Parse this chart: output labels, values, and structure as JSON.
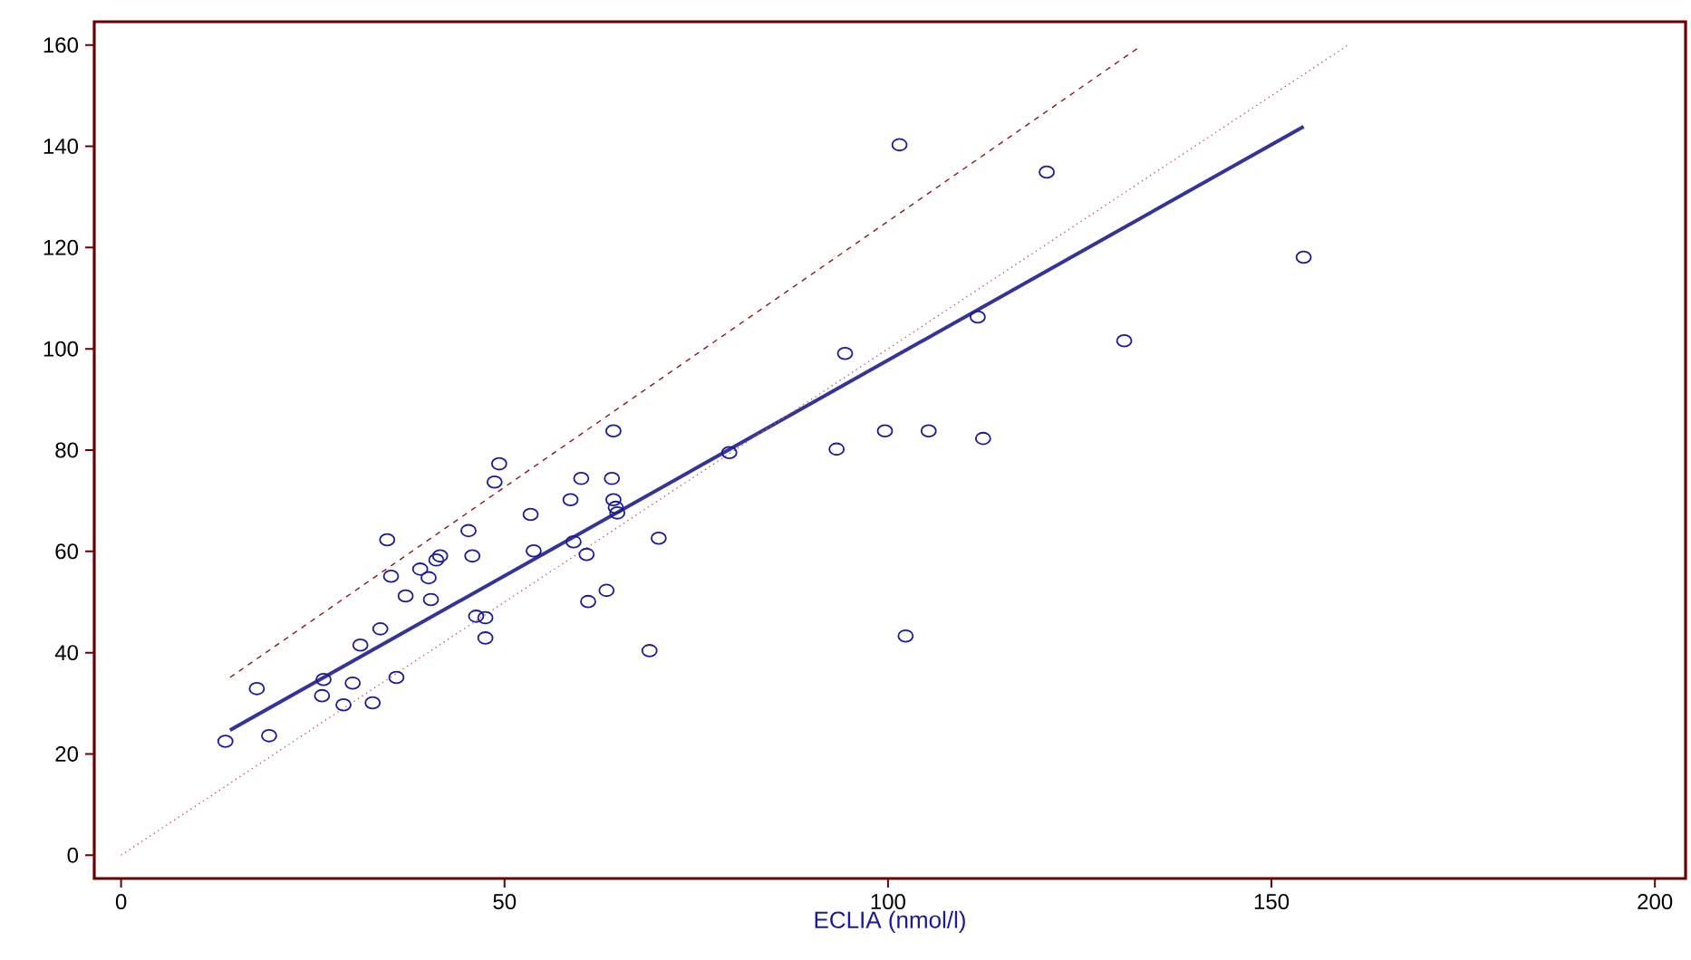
{
  "chart_data": {
    "type": "scatter",
    "xlabel": "ECLIA (nmol/l)",
    "xlim": [
      -3.5,
      204
    ],
    "ylim": [
      -4.6,
      164.6
    ],
    "xticks": [
      0,
      50,
      100,
      150,
      200
    ],
    "yticks": [
      0,
      20,
      40,
      60,
      80,
      100,
      120,
      140,
      160
    ],
    "grid": false,
    "series": [
      {
        "color": "#1a1a9a",
        "marker": "circle",
        "x": [
          13.6,
          17.7,
          19.3,
          26.4,
          26.2,
          29.0,
          30.2,
          31.2,
          32.8,
          33.8,
          34.7,
          35.2,
          35.9,
          37.1,
          39.0,
          40.1,
          40.4,
          41.1,
          41.6,
          45.3,
          45.8,
          46.3,
          47.5,
          47.5,
          48.7,
          49.3,
          53.4,
          53.8,
          58.6,
          59.0,
          60.0,
          60.7,
          60.9,
          63.3,
          64.0,
          64.2,
          64.2,
          64.5,
          64.7,
          68.9,
          70.1,
          79.3,
          93.3,
          94.4,
          99.6,
          101.5,
          102.3,
          105.3,
          111.7,
          112.4,
          120.7,
          130.8,
          154.2
        ],
        "values": [
          22.5,
          32.9,
          23.6,
          34.7,
          31.5,
          29.7,
          34.0,
          41.5,
          30.1,
          44.7,
          62.3,
          55.1,
          35.1,
          51.2,
          56.5,
          54.8,
          50.5,
          58.3,
          59.1,
          64.1,
          59.1,
          47.2,
          46.9,
          42.9,
          73.7,
          77.3,
          67.3,
          60.1,
          70.2,
          61.9,
          74.4,
          59.4,
          50.1,
          52.3,
          74.4,
          83.8,
          70.2,
          68.7,
          67.6,
          40.4,
          62.6,
          79.5,
          80.2,
          99.1,
          83.8,
          140.3,
          43.3,
          83.8,
          106.3,
          82.3,
          134.9,
          101.6,
          118.1
        ]
      },
      {
        "type": "line",
        "color": "#333399",
        "line_style": "solid",
        "x": [
          14.2,
          154.2
        ],
        "values": [
          24.7,
          143.9
        ]
      },
      {
        "type": "line",
        "color": "#8b1a1a",
        "line_style": "dashed",
        "x": [
          14.2,
          132.5
        ],
        "values": [
          35.1,
          159.3
        ]
      },
      {
        "type": "line",
        "color": "#c06060",
        "line_style": "dotted",
        "x": [
          0,
          160
        ],
        "values": [
          0,
          160
        ]
      }
    ]
  }
}
